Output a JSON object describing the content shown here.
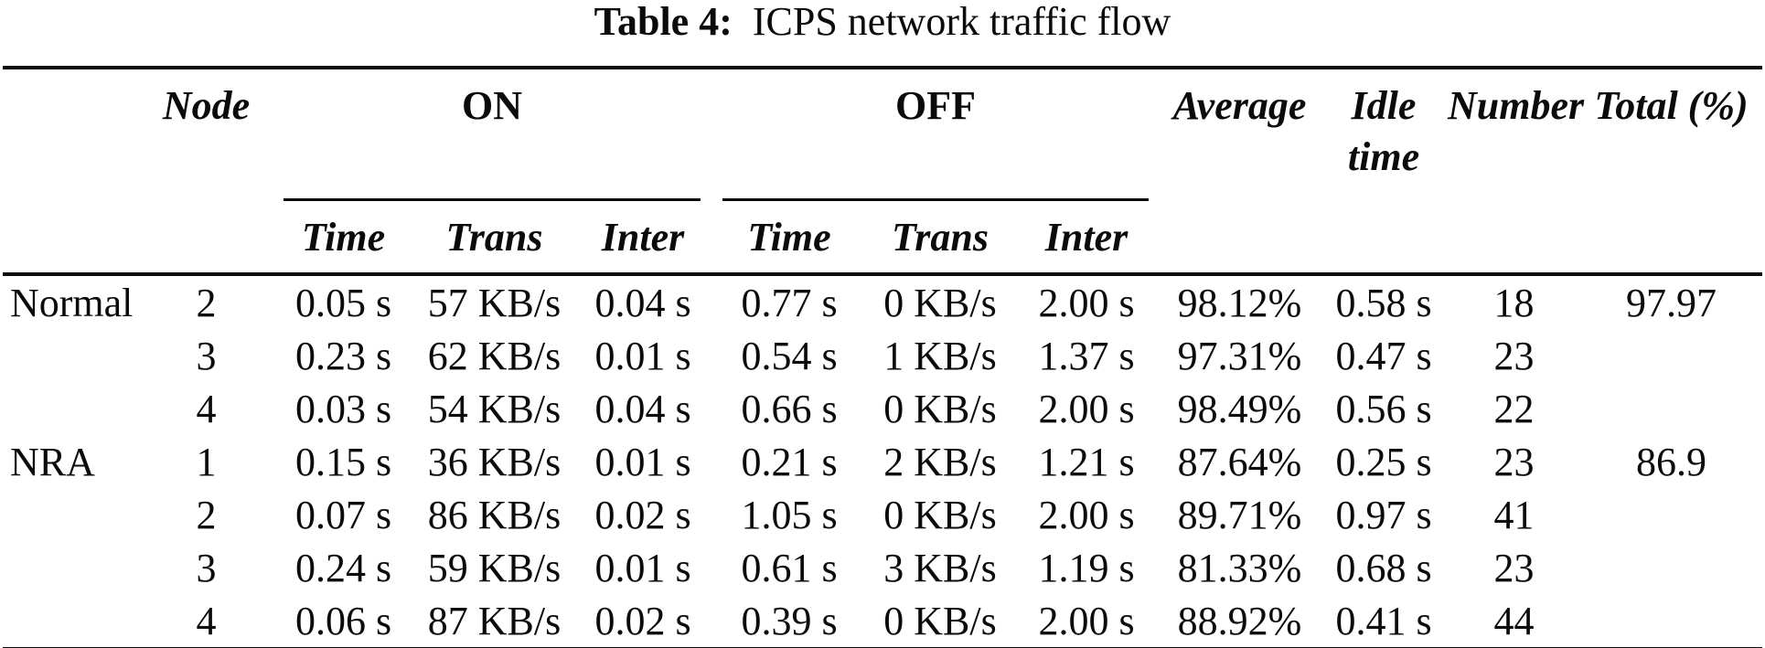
{
  "caption": {
    "label": "Table 4:",
    "title": "ICPS network traffic flow"
  },
  "table": {
    "headers": {
      "node": "Node",
      "on": "ON",
      "off": "OFF",
      "average": "Average",
      "idle_time": "Idle time",
      "number": "Number",
      "total": "Total (%)",
      "time": "Time",
      "trans": "Trans",
      "inter": "Inter"
    },
    "rows": [
      {
        "group": "Normal",
        "node": "2",
        "on_time": "0.05 s",
        "on_trans": "57 KB/s",
        "on_inter": "0.04 s",
        "off_time": "0.77 s",
        "off_trans": "0 KB/s",
        "off_inter": "2.00 s",
        "average": "98.12%",
        "idle": "0.58 s",
        "number": "18",
        "total": "97.97"
      },
      {
        "group": "",
        "node": "3",
        "on_time": "0.23 s",
        "on_trans": "62 KB/s",
        "on_inter": "0.01 s",
        "off_time": "0.54 s",
        "off_trans": "1 KB/s",
        "off_inter": "1.37 s",
        "average": "97.31%",
        "idle": "0.47 s",
        "number": "23",
        "total": ""
      },
      {
        "group": "",
        "node": "4",
        "on_time": "0.03 s",
        "on_trans": "54 KB/s",
        "on_inter": "0.04 s",
        "off_time": "0.66 s",
        "off_trans": "0 KB/s",
        "off_inter": "2.00 s",
        "average": "98.49%",
        "idle": "0.56 s",
        "number": "22",
        "total": ""
      },
      {
        "group": "NRA",
        "node": "1",
        "on_time": "0.15 s",
        "on_trans": "36 KB/s",
        "on_inter": "0.01 s",
        "off_time": "0.21 s",
        "off_trans": "2 KB/s",
        "off_inter": "1.21 s",
        "average": "87.64%",
        "idle": "0.25 s",
        "number": "23",
        "total": "86.9"
      },
      {
        "group": "",
        "node": "2",
        "on_time": "0.07 s",
        "on_trans": "86 KB/s",
        "on_inter": "0.02 s",
        "off_time": "1.05 s",
        "off_trans": "0 KB/s",
        "off_inter": "2.00 s",
        "average": "89.71%",
        "idle": "0.97 s",
        "number": "41",
        "total": ""
      },
      {
        "group": "",
        "node": "3",
        "on_time": "0.24 s",
        "on_trans": "59 KB/s",
        "on_inter": "0.01 s",
        "off_time": "0.61 s",
        "off_trans": "3 KB/s",
        "off_inter": "1.19 s",
        "average": "81.33%",
        "idle": "0.68 s",
        "number": "23",
        "total": ""
      },
      {
        "group": "",
        "node": "4",
        "on_time": "0.06 s",
        "on_trans": "87 KB/s",
        "on_inter": "0.02 s",
        "off_time": "0.39 s",
        "off_trans": "0 KB/s",
        "off_inter": "2.00 s",
        "average": "88.92%",
        "idle": "0.41 s",
        "number": "44",
        "total": ""
      }
    ]
  }
}
